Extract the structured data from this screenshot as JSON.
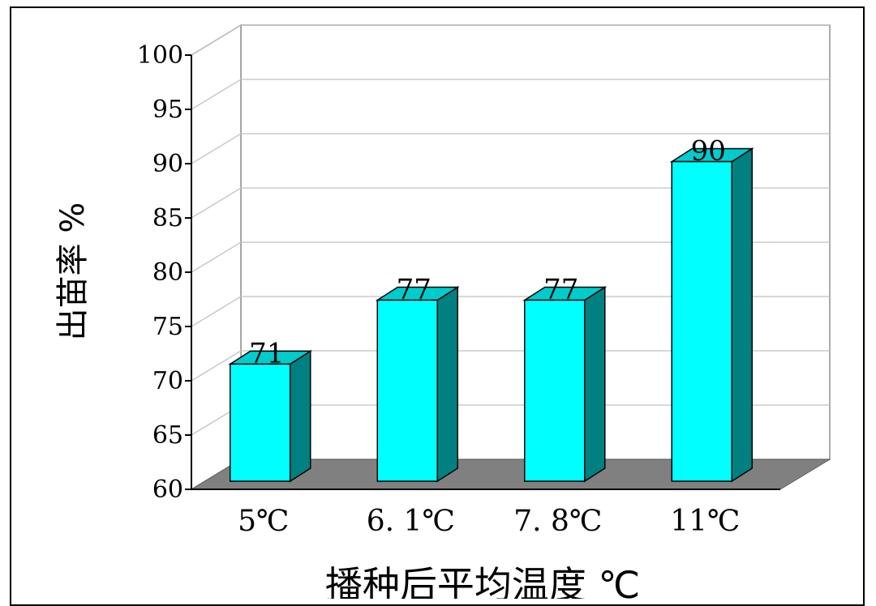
{
  "chart_data": {
    "type": "bar",
    "style": "3d",
    "categories": [
      "5℃",
      "6.1℃",
      "7.8℃",
      "11℃"
    ],
    "category_labels": [
      "5℃",
      "6. 1℃",
      "7. 8℃",
      "11℃"
    ],
    "values": [
      71,
      77,
      77,
      90
    ],
    "data_labels": [
      "71",
      "77",
      "77",
      "90"
    ],
    "title": "",
    "xlabel": "播种后平均温度 ℃",
    "ylabel": "出苗率 %",
    "ylim": [
      60,
      100
    ],
    "yticks": [
      60,
      65,
      70,
      75,
      80,
      85,
      90,
      95,
      100
    ],
    "ytick_labels": [
      "60",
      "65",
      "70",
      "75",
      "80",
      "85",
      "90",
      "95",
      "100"
    ],
    "grid": true,
    "legend": "none",
    "colors": {
      "bar_front": "#00ffff",
      "bar_side": "#008080",
      "bar_top": "#00cccc",
      "floor": "#808080",
      "grid": "#c0c0c0",
      "outline": "#000000"
    }
  }
}
